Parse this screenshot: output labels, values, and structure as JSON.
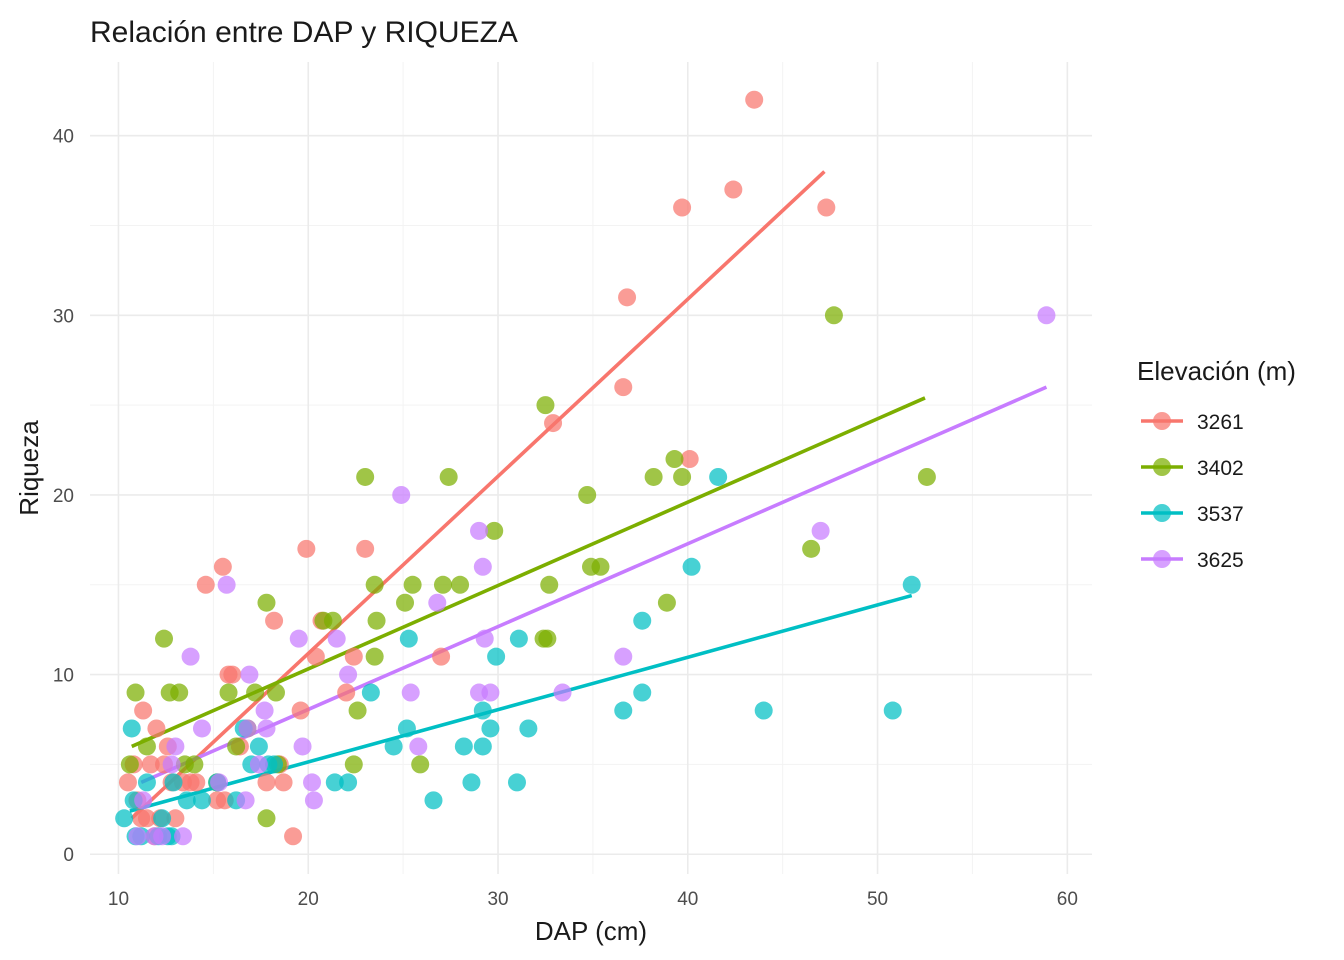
{
  "chart_data": {
    "type": "scatter",
    "title": "Relación entre DAP y RIQUEZA",
    "xlabel": "DAP (cm)",
    "ylabel": "Riqueza",
    "xlim": [
      8.5,
      61.3
    ],
    "ylim": [
      -1.1,
      44.1
    ],
    "xticks": [
      10,
      20,
      30,
      40,
      50,
      60
    ],
    "yticks": [
      0,
      10,
      20,
      30,
      40
    ],
    "grid": true,
    "legend": {
      "title": "Elevación (m)",
      "position": "right"
    },
    "series": [
      {
        "name": "3261",
        "color": "#F8766D",
        "trend": {
          "x": [
            10.7,
            47.2
          ],
          "y": [
            2.0,
            38.0
          ]
        },
        "points": [
          [
            10.5,
            4
          ],
          [
            10.8,
            5
          ],
          [
            11.0,
            3
          ],
          [
            11.2,
            2
          ],
          [
            11.3,
            8
          ],
          [
            11.5,
            2
          ],
          [
            11.7,
            5
          ],
          [
            11.9,
            1
          ],
          [
            12.0,
            7
          ],
          [
            12.2,
            2
          ],
          [
            12.4,
            5
          ],
          [
            12.6,
            6
          ],
          [
            12.8,
            4
          ],
          [
            13.0,
            2
          ],
          [
            13.4,
            4
          ],
          [
            13.8,
            4
          ],
          [
            14.1,
            4
          ],
          [
            14.6,
            15
          ],
          [
            15.2,
            3
          ],
          [
            15.5,
            16
          ],
          [
            15.6,
            3
          ],
          [
            15.8,
            10
          ],
          [
            16.0,
            10
          ],
          [
            16.4,
            6
          ],
          [
            17.8,
            4
          ],
          [
            18.2,
            13
          ],
          [
            18.5,
            5
          ],
          [
            18.7,
            4
          ],
          [
            19.2,
            1
          ],
          [
            19.6,
            8
          ],
          [
            19.9,
            17
          ],
          [
            20.4,
            11
          ],
          [
            20.7,
            13
          ],
          [
            22.0,
            9
          ],
          [
            22.4,
            11
          ],
          [
            23.0,
            17
          ],
          [
            27.0,
            11
          ],
          [
            32.9,
            24
          ],
          [
            36.6,
            26
          ],
          [
            36.8,
            31
          ],
          [
            39.7,
            36
          ],
          [
            40.1,
            22
          ],
          [
            42.4,
            37
          ],
          [
            43.5,
            42
          ],
          [
            47.3,
            36
          ]
        ]
      },
      {
        "name": "3402",
        "color": "#7CAE00",
        "trend": {
          "x": [
            10.7,
            52.5
          ],
          "y": [
            6.0,
            25.4
          ]
        },
        "points": [
          [
            10.6,
            5
          ],
          [
            10.9,
            9
          ],
          [
            11.5,
            6
          ],
          [
            12.4,
            12
          ],
          [
            12.7,
            9
          ],
          [
            13.2,
            9
          ],
          [
            13.5,
            5
          ],
          [
            14.0,
            5
          ],
          [
            15.2,
            4
          ],
          [
            15.8,
            9
          ],
          [
            16.2,
            6
          ],
          [
            16.8,
            7
          ],
          [
            17.2,
            9
          ],
          [
            17.8,
            14
          ],
          [
            17.8,
            2
          ],
          [
            18.3,
            9
          ],
          [
            18.4,
            5
          ],
          [
            20.8,
            13
          ],
          [
            21.3,
            13
          ],
          [
            22.4,
            5
          ],
          [
            22.6,
            8
          ],
          [
            23.0,
            21
          ],
          [
            23.5,
            11
          ],
          [
            23.5,
            15
          ],
          [
            23.6,
            13
          ],
          [
            25.1,
            14
          ],
          [
            25.5,
            15
          ],
          [
            25.9,
            5
          ],
          [
            27.1,
            15
          ],
          [
            27.4,
            21
          ],
          [
            28.0,
            15
          ],
          [
            29.8,
            18
          ],
          [
            32.4,
            12
          ],
          [
            32.5,
            25
          ],
          [
            32.6,
            12
          ],
          [
            32.7,
            15
          ],
          [
            34.7,
            20
          ],
          [
            34.9,
            16
          ],
          [
            35.4,
            16
          ],
          [
            38.2,
            21
          ],
          [
            38.9,
            14
          ],
          [
            39.3,
            22
          ],
          [
            39.7,
            21
          ],
          [
            46.5,
            17
          ],
          [
            47.7,
            30
          ],
          [
            52.6,
            21
          ]
        ]
      },
      {
        "name": "3537",
        "color": "#00BFC4",
        "trend": {
          "x": [
            10.6,
            51.8
          ],
          "y": [
            2.4,
            14.4
          ]
        },
        "points": [
          [
            10.3,
            2
          ],
          [
            10.7,
            7
          ],
          [
            10.8,
            3
          ],
          [
            10.9,
            1
          ],
          [
            11.2,
            1
          ],
          [
            11.5,
            4
          ],
          [
            12.1,
            1
          ],
          [
            12.3,
            2
          ],
          [
            12.6,
            1
          ],
          [
            12.8,
            1
          ],
          [
            12.9,
            4
          ],
          [
            13.6,
            3
          ],
          [
            14.4,
            3
          ],
          [
            15.2,
            4
          ],
          [
            16.2,
            3
          ],
          [
            16.6,
            7
          ],
          [
            17.0,
            5
          ],
          [
            17.4,
            6
          ],
          [
            17.9,
            5
          ],
          [
            18.2,
            5
          ],
          [
            21.4,
            4
          ],
          [
            22.1,
            4
          ],
          [
            23.3,
            9
          ],
          [
            24.5,
            6
          ],
          [
            25.2,
            7
          ],
          [
            25.3,
            12
          ],
          [
            26.6,
            3
          ],
          [
            28.2,
            6
          ],
          [
            28.6,
            4
          ],
          [
            29.2,
            6
          ],
          [
            29.2,
            8
          ],
          [
            29.6,
            7
          ],
          [
            29.9,
            11
          ],
          [
            31.0,
            4
          ],
          [
            31.1,
            12
          ],
          [
            31.6,
            7
          ],
          [
            36.6,
            8
          ],
          [
            37.6,
            9
          ],
          [
            37.6,
            13
          ],
          [
            40.2,
            16
          ],
          [
            41.6,
            21
          ],
          [
            44.0,
            8
          ],
          [
            50.8,
            8
          ],
          [
            51.8,
            15
          ]
        ]
      },
      {
        "name": "3625",
        "color": "#C77CFF",
        "trend": {
          "x": [
            11.2,
            58.9
          ],
          "y": [
            4.0,
            26.0
          ]
        },
        "points": [
          [
            11.0,
            1
          ],
          [
            11.3,
            3
          ],
          [
            11.9,
            1
          ],
          [
            12.3,
            1
          ],
          [
            12.8,
            5
          ],
          [
            13.0,
            6
          ],
          [
            13.4,
            1
          ],
          [
            13.8,
            11
          ],
          [
            14.4,
            7
          ],
          [
            15.3,
            4
          ],
          [
            15.7,
            15
          ],
          [
            16.7,
            3
          ],
          [
            16.8,
            7
          ],
          [
            16.9,
            10
          ],
          [
            17.4,
            5
          ],
          [
            17.7,
            8
          ],
          [
            17.8,
            7
          ],
          [
            19.5,
            12
          ],
          [
            19.7,
            6
          ],
          [
            20.2,
            4
          ],
          [
            20.3,
            3
          ],
          [
            21.5,
            12
          ],
          [
            22.1,
            10
          ],
          [
            24.9,
            20
          ],
          [
            25.4,
            9
          ],
          [
            25.8,
            6
          ],
          [
            26.8,
            14
          ],
          [
            29.0,
            9
          ],
          [
            29.0,
            18
          ],
          [
            29.2,
            16
          ],
          [
            29.3,
            12
          ],
          [
            29.6,
            9
          ],
          [
            33.4,
            9
          ],
          [
            36.6,
            11
          ],
          [
            47.0,
            18
          ],
          [
            58.9,
            30
          ]
        ]
      }
    ]
  }
}
